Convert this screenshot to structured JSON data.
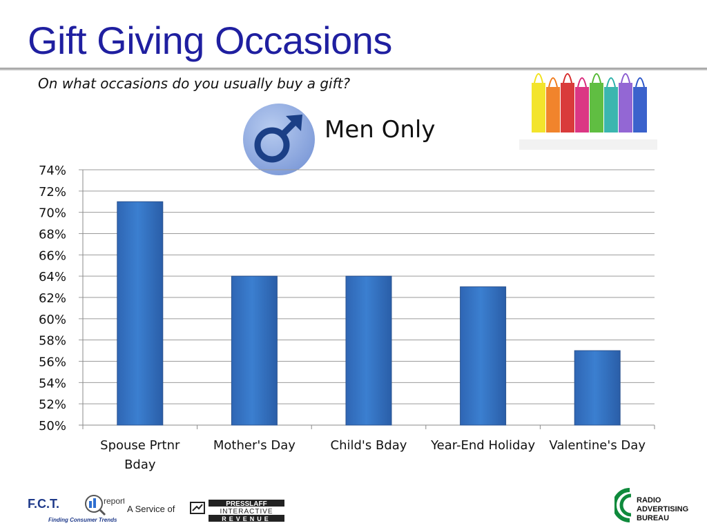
{
  "title": "Gift Giving Occasions",
  "subtitle": "On what occasions do you usually buy a gift?",
  "segment_label": "Men Only",
  "male_symbol": "♂",
  "icons": {
    "segment": "male-symbol-icon",
    "decor": "shopping-bags-icon"
  },
  "chart_data": {
    "type": "bar",
    "categories": [
      "Spouse Prtnr Bday",
      "Mother's Day",
      "Child's Bday",
      "Year-End Holiday",
      "Valentine's Day"
    ],
    "category_lines": [
      [
        "Spouse Prtnr",
        "Bday"
      ],
      [
        "Mother's Day"
      ],
      [
        "Child's Bday"
      ],
      [
        "Year-End Holiday"
      ],
      [
        "Valentine's Day"
      ]
    ],
    "values": [
      71,
      64,
      64,
      63,
      57
    ],
    "ylim": [
      50,
      74
    ],
    "ytick_step": 2,
    "ytick_suffix": "%",
    "grid": true,
    "bar_color": "#3b7fd0"
  },
  "footer": {
    "fct": {
      "letters": "F.C.T.",
      "reports": "reports",
      "tagline": "Finding Consumer Trends"
    },
    "service_text": "A Service of",
    "presslaff": {
      "line1": "PRESSLAFF",
      "line2": "INTERACTIVE",
      "line3": "REVENUE"
    },
    "rab": {
      "line1": "RADIO",
      "line2": "ADVERTISING",
      "line3": "BUREAU"
    }
  }
}
